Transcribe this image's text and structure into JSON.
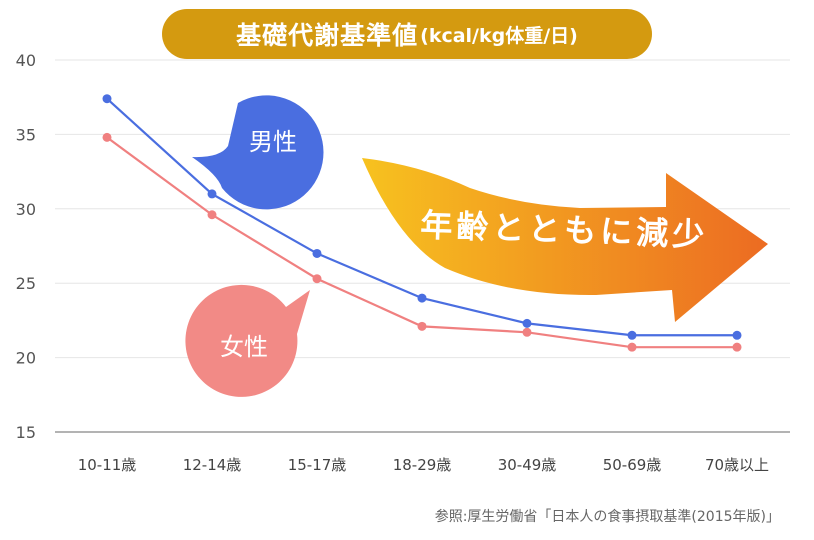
{
  "title": {
    "main": "基礎代謝基準値",
    "unit": "(kcal/kg体重/日)"
  },
  "source": "参照:厚生労働省「日本人の食事摂取基準(2015年版)」",
  "bubbles": {
    "male": "男性",
    "female": "女性"
  },
  "arrow_text": "年齢とともに減少",
  "colors": {
    "male": "#4a6ee0",
    "female": "#f08080",
    "title_bg": "#d49a10",
    "male_bubble": "#4a6ee0",
    "female_bubble": "#f28a86",
    "arrow_start": "#f7c21f",
    "arrow_end": "#ec6b22"
  },
  "chart_data": {
    "type": "line",
    "categories": [
      "10-11歳",
      "12-14歳",
      "15-17歳",
      "18-29歳",
      "30-49歳",
      "50-69歳",
      "70歳以上"
    ],
    "series": [
      {
        "name": "男性",
        "values": [
          37.4,
          31.0,
          27.0,
          24.0,
          22.3,
          21.5,
          21.5
        ]
      },
      {
        "name": "女性",
        "values": [
          34.8,
          29.6,
          25.3,
          22.1,
          21.7,
          20.7,
          20.7
        ]
      }
    ],
    "ylim": [
      15,
      40
    ],
    "yticks": [
      "15",
      "20",
      "25",
      "30",
      "35",
      "40"
    ],
    "grid": true
  }
}
